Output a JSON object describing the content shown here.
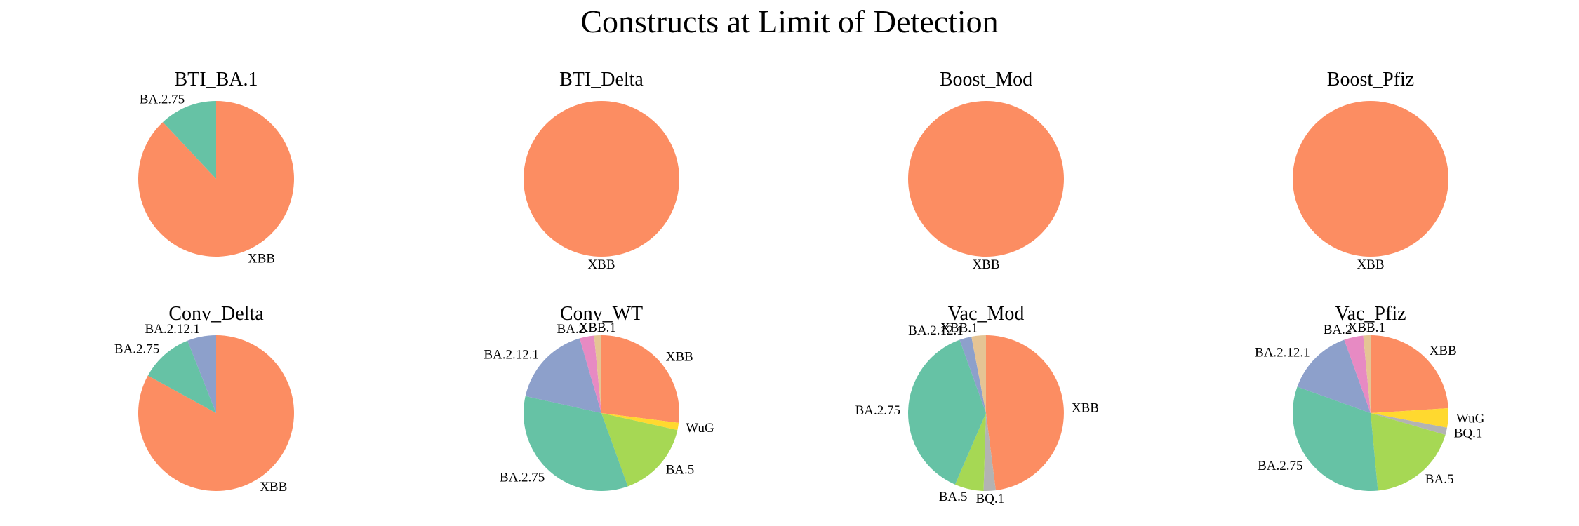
{
  "figure_title": "Constructs at Limit of Detection",
  "colors": {
    "XBB": "#fc8d62",
    "BA.2.75": "#66c2a5",
    "BA.2.12.1": "#8da0cb",
    "BA.2": "#e78ac3",
    "BA.5": "#a6d854",
    "WuG": "#ffd92f",
    "XBB.1": "#e5c494",
    "BQ.1": "#b3b3b3"
  },
  "chart_data": [
    {
      "type": "pie",
      "title": "BTI_BA.1",
      "start_angle_deg": 90,
      "direction": "clockwise",
      "slices": [
        {
          "label": "XBB",
          "value": 88
        },
        {
          "label": "BA.2.75",
          "value": 12
        }
      ]
    },
    {
      "type": "pie",
      "title": "BTI_Delta",
      "start_angle_deg": 90,
      "direction": "clockwise",
      "slices": [
        {
          "label": "XBB",
          "value": 100
        }
      ]
    },
    {
      "type": "pie",
      "title": "Boost_Mod",
      "start_angle_deg": 90,
      "direction": "clockwise",
      "slices": [
        {
          "label": "XBB",
          "value": 100
        }
      ]
    },
    {
      "type": "pie",
      "title": "Boost_Pfiz",
      "start_angle_deg": 90,
      "direction": "clockwise",
      "slices": [
        {
          "label": "XBB",
          "value": 100
        }
      ]
    },
    {
      "type": "pie",
      "title": "Conv_Delta",
      "start_angle_deg": 90,
      "direction": "clockwise",
      "slices": [
        {
          "label": "XBB",
          "value": 83
        },
        {
          "label": "BA.2.75",
          "value": 11
        },
        {
          "label": "BA.2.12.1",
          "value": 6
        }
      ]
    },
    {
      "type": "pie",
      "title": "Conv_WT",
      "start_angle_deg": 90,
      "direction": "clockwise",
      "slices": [
        {
          "label": "XBB",
          "value": 27
        },
        {
          "label": "WuG",
          "value": 1.5
        },
        {
          "label": "BA.5",
          "value": 16
        },
        {
          "label": "BA.2.75",
          "value": 34
        },
        {
          "label": "BA.2.12.1",
          "value": 17
        },
        {
          "label": "BA.2",
          "value": 3
        },
        {
          "label": "XBB.1",
          "value": 1.5
        }
      ]
    },
    {
      "type": "pie",
      "title": "Vac_Mod",
      "start_angle_deg": 90,
      "direction": "clockwise",
      "slices": [
        {
          "label": "XBB",
          "value": 48
        },
        {
          "label": "BQ.1",
          "value": 2.5
        },
        {
          "label": "BA.5",
          "value": 6
        },
        {
          "label": "BA.2.75",
          "value": 38
        },
        {
          "label": "BA.2.12.1",
          "value": 2.5
        },
        {
          "label": "XBB.1",
          "value": 3
        }
      ]
    },
    {
      "type": "pie",
      "title": "Vac_Pfiz",
      "start_angle_deg": 90,
      "direction": "clockwise",
      "slices": [
        {
          "label": "XBB",
          "value": 24
        },
        {
          "label": "WuG",
          "value": 4
        },
        {
          "label": "BQ.1",
          "value": 1.5
        },
        {
          "label": "BA.5",
          "value": 19
        },
        {
          "label": "BA.2.75",
          "value": 32
        },
        {
          "label": "BA.2.12.1",
          "value": 14
        },
        {
          "label": "BA.2",
          "value": 4
        },
        {
          "label": "XBB.1",
          "value": 1.5
        }
      ]
    }
  ]
}
